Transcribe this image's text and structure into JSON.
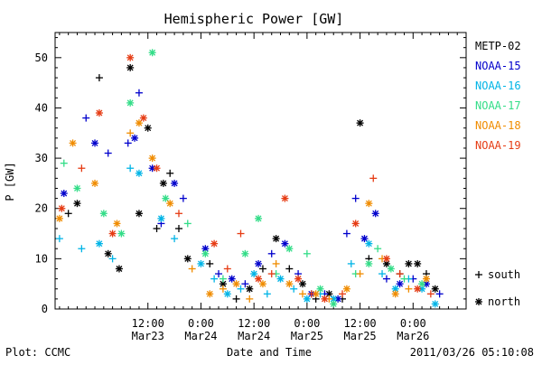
{
  "chart_data": {
    "type": "scatter",
    "title": "Hemispheric Power [GW]",
    "xlabel": "Date and Time",
    "ylabel": "P [GW]",
    "xlim": [
      "2011-03-22 15:00",
      "2011-03-26 12:00"
    ],
    "ylim": [
      0,
      55
    ],
    "y_ticks": [
      0,
      10,
      20,
      30,
      40,
      50
    ],
    "x_ticks": [
      {
        "time": "2011-03-23 12:00",
        "line1": "12:00",
        "line2": "Mar23"
      },
      {
        "time": "2011-03-24 00:00",
        "line1": "0:00",
        "line2": "Mar24"
      },
      {
        "time": "2011-03-24 12:00",
        "line1": "12:00",
        "line2": "Mar24"
      },
      {
        "time": "2011-03-25 00:00",
        "line1": "0:00",
        "line2": "Mar25"
      },
      {
        "time": "2011-03-25 12:00",
        "line1": "12:00",
        "line2": "Mar25"
      },
      {
        "time": "2011-03-26 00:00",
        "line1": "0:00",
        "line2": "Mar26"
      }
    ],
    "grid": false,
    "legend_position": "right",
    "marker_legend": [
      {
        "symbol": "+",
        "label": "south"
      },
      {
        "symbol": "*",
        "label": "north"
      }
    ],
    "series": [
      {
        "name": "METP-02",
        "color": "#000000",
        "points": [
          {
            "x": "2011-03-22 18:00",
            "y": 19,
            "m": "+"
          },
          {
            "x": "2011-03-22 20:00",
            "y": 21,
            "m": "*"
          },
          {
            "x": "2011-03-23 01:00",
            "y": 46,
            "m": "+"
          },
          {
            "x": "2011-03-23 03:00",
            "y": 11,
            "m": "*"
          },
          {
            "x": "2011-03-23 05:30",
            "y": 8,
            "m": "*"
          },
          {
            "x": "2011-03-23 08:00",
            "y": 48,
            "m": "*"
          },
          {
            "x": "2011-03-23 10:00",
            "y": 19,
            "m": "*"
          },
          {
            "x": "2011-03-23 12:00",
            "y": 36,
            "m": "*"
          },
          {
            "x": "2011-03-23 14:00",
            "y": 16,
            "m": "+"
          },
          {
            "x": "2011-03-23 15:30",
            "y": 25,
            "m": "*"
          },
          {
            "x": "2011-03-23 17:00",
            "y": 27,
            "m": "+"
          },
          {
            "x": "2011-03-23 19:00",
            "y": 16,
            "m": "+"
          },
          {
            "x": "2011-03-23 21:00",
            "y": 10,
            "m": "*"
          },
          {
            "x": "2011-03-24 02:00",
            "y": 9,
            "m": "+"
          },
          {
            "x": "2011-03-24 05:00",
            "y": 5,
            "m": "*"
          },
          {
            "x": "2011-03-24 08:00",
            "y": 2,
            "m": "+"
          },
          {
            "x": "2011-03-24 11:00",
            "y": 4,
            "m": "*"
          },
          {
            "x": "2011-03-24 14:00",
            "y": 8,
            "m": "+"
          },
          {
            "x": "2011-03-24 17:00",
            "y": 14,
            "m": "*"
          },
          {
            "x": "2011-03-24 20:00",
            "y": 8,
            "m": "+"
          },
          {
            "x": "2011-03-24 23:00",
            "y": 5,
            "m": "*"
          },
          {
            "x": "2011-03-25 02:00",
            "y": 2,
            "m": "+"
          },
          {
            "x": "2011-03-25 05:00",
            "y": 3,
            "m": "*"
          },
          {
            "x": "2011-03-25 08:00",
            "y": 2,
            "m": "+"
          },
          {
            "x": "2011-03-25 12:00",
            "y": 37,
            "m": "*"
          },
          {
            "x": "2011-03-25 14:00",
            "y": 10,
            "m": "+"
          },
          {
            "x": "2011-03-25 18:00",
            "y": 9,
            "m": "*"
          },
          {
            "x": "2011-03-25 21:00",
            "y": 7,
            "m": "+"
          },
          {
            "x": "2011-03-25 23:00",
            "y": 9,
            "m": "*"
          },
          {
            "x": "2011-03-26 01:00",
            "y": 9,
            "m": "*"
          },
          {
            "x": "2011-03-26 03:00",
            "y": 7,
            "m": "+"
          },
          {
            "x": "2011-03-26 05:00",
            "y": 4,
            "m": "*"
          }
        ]
      },
      {
        "name": "NOAA-15",
        "color": "#0000cc",
        "points": [
          {
            "x": "2011-03-22 17:00",
            "y": 23,
            "m": "*"
          },
          {
            "x": "2011-03-22 22:00",
            "y": 38,
            "m": "+"
          },
          {
            "x": "2011-03-23 00:00",
            "y": 33,
            "m": "*"
          },
          {
            "x": "2011-03-23 03:00",
            "y": 31,
            "m": "+"
          },
          {
            "x": "2011-03-23 07:30",
            "y": 33,
            "m": "+"
          },
          {
            "x": "2011-03-23 09:00",
            "y": 34,
            "m": "*"
          },
          {
            "x": "2011-03-23 10:00",
            "y": 43,
            "m": "+"
          },
          {
            "x": "2011-03-23 13:00",
            "y": 28,
            "m": "*"
          },
          {
            "x": "2011-03-23 15:00",
            "y": 17,
            "m": "+"
          },
          {
            "x": "2011-03-23 18:00",
            "y": 25,
            "m": "*"
          },
          {
            "x": "2011-03-23 20:00",
            "y": 22,
            "m": "+"
          },
          {
            "x": "2011-03-24 01:00",
            "y": 12,
            "m": "*"
          },
          {
            "x": "2011-03-24 04:00",
            "y": 7,
            "m": "+"
          },
          {
            "x": "2011-03-24 07:00",
            "y": 6,
            "m": "*"
          },
          {
            "x": "2011-03-24 10:00",
            "y": 5,
            "m": "+"
          },
          {
            "x": "2011-03-24 13:00",
            "y": 9,
            "m": "*"
          },
          {
            "x": "2011-03-24 16:00",
            "y": 11,
            "m": "+"
          },
          {
            "x": "2011-03-24 19:00",
            "y": 13,
            "m": "*"
          },
          {
            "x": "2011-03-24 22:00",
            "y": 7,
            "m": "+"
          },
          {
            "x": "2011-03-25 01:00",
            "y": 3,
            "m": "*"
          },
          {
            "x": "2011-03-25 04:00",
            "y": 3,
            "m": "+"
          },
          {
            "x": "2011-03-25 07:00",
            "y": 2,
            "m": "*"
          },
          {
            "x": "2011-03-25 09:00",
            "y": 15,
            "m": "+"
          },
          {
            "x": "2011-03-25 11:00",
            "y": 22,
            "m": "+"
          },
          {
            "x": "2011-03-25 13:00",
            "y": 14,
            "m": "*"
          },
          {
            "x": "2011-03-25 15:30",
            "y": 19,
            "m": "*"
          },
          {
            "x": "2011-03-25 18:00",
            "y": 6,
            "m": "+"
          },
          {
            "x": "2011-03-25 21:00",
            "y": 5,
            "m": "*"
          },
          {
            "x": "2011-03-26 00:00",
            "y": 6,
            "m": "+"
          },
          {
            "x": "2011-03-26 03:00",
            "y": 5,
            "m": "*"
          },
          {
            "x": "2011-03-26 06:00",
            "y": 3,
            "m": "+"
          }
        ]
      },
      {
        "name": "NOAA-16",
        "color": "#00b4e6",
        "points": [
          {
            "x": "2011-03-22 16:00",
            "y": 14,
            "m": "+"
          },
          {
            "x": "2011-03-22 21:00",
            "y": 12,
            "m": "+"
          },
          {
            "x": "2011-03-23 01:00",
            "y": 13,
            "m": "*"
          },
          {
            "x": "2011-03-23 04:00",
            "y": 10,
            "m": "+"
          },
          {
            "x": "2011-03-23 08:00",
            "y": 28,
            "m": "+"
          },
          {
            "x": "2011-03-23 10:00",
            "y": 27,
            "m": "*"
          },
          {
            "x": "2011-03-23 15:00",
            "y": 18,
            "m": "*"
          },
          {
            "x": "2011-03-23 18:00",
            "y": 14,
            "m": "+"
          },
          {
            "x": "2011-03-24 00:00",
            "y": 9,
            "m": "*"
          },
          {
            "x": "2011-03-24 03:00",
            "y": 6,
            "m": "+"
          },
          {
            "x": "2011-03-24 06:00",
            "y": 3,
            "m": "*"
          },
          {
            "x": "2011-03-24 09:00",
            "y": 4,
            "m": "+"
          },
          {
            "x": "2011-03-24 12:00",
            "y": 7,
            "m": "*"
          },
          {
            "x": "2011-03-24 15:00",
            "y": 3,
            "m": "+"
          },
          {
            "x": "2011-03-24 18:00",
            "y": 6,
            "m": "*"
          },
          {
            "x": "2011-03-24 21:00",
            "y": 4,
            "m": "+"
          },
          {
            "x": "2011-03-25 00:00",
            "y": 2,
            "m": "*"
          },
          {
            "x": "2011-03-25 03:00",
            "y": 3,
            "m": "+"
          },
          {
            "x": "2011-03-25 06:00",
            "y": 2,
            "m": "*"
          },
          {
            "x": "2011-03-25 10:00",
            "y": 9,
            "m": "+"
          },
          {
            "x": "2011-03-25 14:00",
            "y": 13,
            "m": "*"
          },
          {
            "x": "2011-03-25 17:00",
            "y": 7,
            "m": "+"
          },
          {
            "x": "2011-03-25 20:00",
            "y": 4,
            "m": "*"
          },
          {
            "x": "2011-03-25 23:00",
            "y": 6,
            "m": "+"
          },
          {
            "x": "2011-03-26 02:00",
            "y": 4,
            "m": "*"
          },
          {
            "x": "2011-03-26 05:00",
            "y": 1,
            "m": "*"
          }
        ]
      },
      {
        "name": "NOAA-17",
        "color": "#33dd88",
        "points": [
          {
            "x": "2011-03-22 17:00",
            "y": 29,
            "m": "+"
          },
          {
            "x": "2011-03-22 20:00",
            "y": 24,
            "m": "*"
          },
          {
            "x": "2011-03-23 02:00",
            "y": 19,
            "m": "*"
          },
          {
            "x": "2011-03-23 06:00",
            "y": 15,
            "m": "*"
          },
          {
            "x": "2011-03-23 08:00",
            "y": 41,
            "m": "*"
          },
          {
            "x": "2011-03-23 13:00",
            "y": 51,
            "m": "*"
          },
          {
            "x": "2011-03-23 16:00",
            "y": 22,
            "m": "*"
          },
          {
            "x": "2011-03-23 21:00",
            "y": 17,
            "m": "+"
          },
          {
            "x": "2011-03-24 01:00",
            "y": 11,
            "m": "*"
          },
          {
            "x": "2011-03-24 05:00",
            "y": 6,
            "m": "+"
          },
          {
            "x": "2011-03-24 10:00",
            "y": 11,
            "m": "*"
          },
          {
            "x": "2011-03-24 13:00",
            "y": 18,
            "m": "*"
          },
          {
            "x": "2011-03-24 17:00",
            "y": 7,
            "m": "+"
          },
          {
            "x": "2011-03-24 20:00",
            "y": 12,
            "m": "*"
          },
          {
            "x": "2011-03-25 00:00",
            "y": 11,
            "m": "+"
          },
          {
            "x": "2011-03-25 03:00",
            "y": 4,
            "m": "*"
          },
          {
            "x": "2011-03-25 06:00",
            "y": 1,
            "m": "*"
          },
          {
            "x": "2011-03-25 11:00",
            "y": 7,
            "m": "+"
          },
          {
            "x": "2011-03-25 14:00",
            "y": 9,
            "m": "*"
          },
          {
            "x": "2011-03-25 16:00",
            "y": 12,
            "m": "+"
          },
          {
            "x": "2011-03-25 19:00",
            "y": 8,
            "m": "*"
          },
          {
            "x": "2011-03-25 22:00",
            "y": 6,
            "m": "+"
          },
          {
            "x": "2011-03-26 02:00",
            "y": 5,
            "m": "*"
          }
        ]
      },
      {
        "name": "NOAA-18",
        "color": "#f08c00",
        "points": [
          {
            "x": "2011-03-22 16:00",
            "y": 18,
            "m": "*"
          },
          {
            "x": "2011-03-22 19:00",
            "y": 33,
            "m": "*"
          },
          {
            "x": "2011-03-23 00:00",
            "y": 25,
            "m": "*"
          },
          {
            "x": "2011-03-23 05:00",
            "y": 17,
            "m": "*"
          },
          {
            "x": "2011-03-23 08:00",
            "y": 35,
            "m": "+"
          },
          {
            "x": "2011-03-23 10:00",
            "y": 37,
            "m": "*"
          },
          {
            "x": "2011-03-23 13:00",
            "y": 30,
            "m": "*"
          },
          {
            "x": "2011-03-23 17:00",
            "y": 21,
            "m": "*"
          },
          {
            "x": "2011-03-23 22:00",
            "y": 8,
            "m": "+"
          },
          {
            "x": "2011-03-24 02:00",
            "y": 3,
            "m": "*"
          },
          {
            "x": "2011-03-24 05:00",
            "y": 4,
            "m": "+"
          },
          {
            "x": "2011-03-24 08:00",
            "y": 5,
            "m": "*"
          },
          {
            "x": "2011-03-24 11:00",
            "y": 2,
            "m": "+"
          },
          {
            "x": "2011-03-24 14:00",
            "y": 5,
            "m": "*"
          },
          {
            "x": "2011-03-24 17:00",
            "y": 9,
            "m": "+"
          },
          {
            "x": "2011-03-24 20:00",
            "y": 5,
            "m": "*"
          },
          {
            "x": "2011-03-24 23:00",
            "y": 3,
            "m": "+"
          },
          {
            "x": "2011-03-25 02:00",
            "y": 3,
            "m": "*"
          },
          {
            "x": "2011-03-25 05:00",
            "y": 2,
            "m": "+"
          },
          {
            "x": "2011-03-25 09:00",
            "y": 4,
            "m": "*"
          },
          {
            "x": "2011-03-25 12:00",
            "y": 7,
            "m": "+"
          },
          {
            "x": "2011-03-25 14:00",
            "y": 21,
            "m": "*"
          },
          {
            "x": "2011-03-25 17:00",
            "y": 10,
            "m": "+"
          },
          {
            "x": "2011-03-25 20:00",
            "y": 3,
            "m": "*"
          },
          {
            "x": "2011-03-25 23:00",
            "y": 4,
            "m": "+"
          },
          {
            "x": "2011-03-26 03:00",
            "y": 6,
            "m": "*"
          }
        ]
      },
      {
        "name": "NOAA-19",
        "color": "#e63c14",
        "points": [
          {
            "x": "2011-03-22 16:30",
            "y": 20,
            "m": "*"
          },
          {
            "x": "2011-03-22 21:00",
            "y": 28,
            "m": "+"
          },
          {
            "x": "2011-03-23 01:00",
            "y": 39,
            "m": "*"
          },
          {
            "x": "2011-03-23 04:00",
            "y": 15,
            "m": "*"
          },
          {
            "x": "2011-03-23 08:00",
            "y": 50,
            "m": "*"
          },
          {
            "x": "2011-03-23 11:00",
            "y": 38,
            "m": "*"
          },
          {
            "x": "2011-03-23 14:00",
            "y": 28,
            "m": "*"
          },
          {
            "x": "2011-03-23 19:00",
            "y": 19,
            "m": "+"
          },
          {
            "x": "2011-03-24 03:00",
            "y": 13,
            "m": "*"
          },
          {
            "x": "2011-03-24 06:00",
            "y": 8,
            "m": "+"
          },
          {
            "x": "2011-03-24 09:00",
            "y": 15,
            "m": "+"
          },
          {
            "x": "2011-03-24 13:00",
            "y": 6,
            "m": "*"
          },
          {
            "x": "2011-03-24 16:00",
            "y": 7,
            "m": "+"
          },
          {
            "x": "2011-03-24 19:00",
            "y": 22,
            "m": "*"
          },
          {
            "x": "2011-03-24 22:00",
            "y": 6,
            "m": "*"
          },
          {
            "x": "2011-03-25 01:00",
            "y": 3,
            "m": "+"
          },
          {
            "x": "2011-03-25 04:00",
            "y": 2,
            "m": "*"
          },
          {
            "x": "2011-03-25 08:00",
            "y": 3,
            "m": "+"
          },
          {
            "x": "2011-03-25 11:00",
            "y": 17,
            "m": "*"
          },
          {
            "x": "2011-03-25 15:00",
            "y": 26,
            "m": "+"
          },
          {
            "x": "2011-03-25 18:00",
            "y": 10,
            "m": "*"
          },
          {
            "x": "2011-03-25 21:00",
            "y": 7,
            "m": "+"
          },
          {
            "x": "2011-03-26 01:00",
            "y": 4,
            "m": "*"
          },
          {
            "x": "2011-03-26 04:00",
            "y": 3,
            "m": "+"
          }
        ]
      }
    ]
  },
  "footer": {
    "left": "Plot: CCMC",
    "right": "2011/03/26 05:10:08"
  }
}
